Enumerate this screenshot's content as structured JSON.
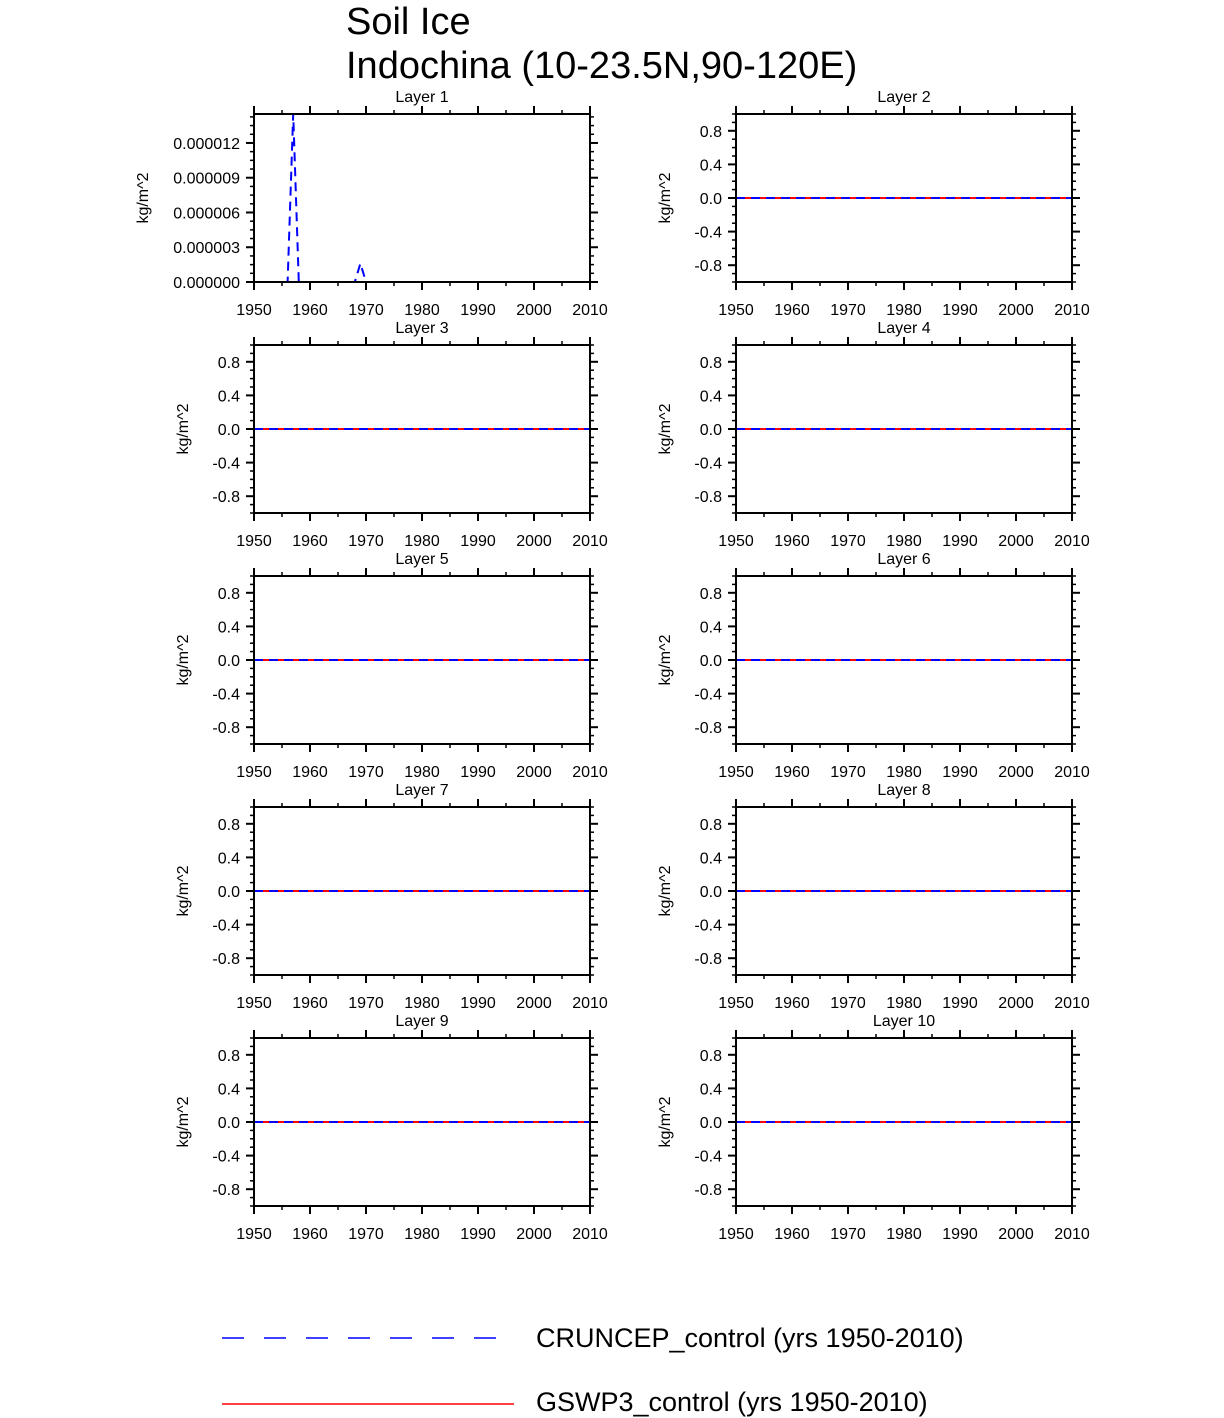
{
  "figure": {
    "title_line1": "Soil Ice",
    "title_line2": "Indochina (10-23.5N,90-120E)"
  },
  "legend": [
    {
      "label": "CRUNCEP_control (yrs 1950-2010)",
      "color": "#0000ff",
      "dash": "dashed"
    },
    {
      "label": "GSWP3_control (yrs 1950-2010)",
      "color": "#ff0000",
      "dash": "solid"
    }
  ],
  "chart_data": [
    {
      "type": "line",
      "title": "Layer 1",
      "ylabel": "kg/m^2",
      "xlim": [
        1950,
        2010
      ],
      "ylim": [
        0,
        1.45e-05
      ],
      "xticks": [
        1950,
        1960,
        1970,
        1980,
        1990,
        2000,
        2010
      ],
      "xticklabels": [
        "1950",
        "1960",
        "1970",
        "1980",
        "1990",
        "2000",
        "2010"
      ],
      "yticks": [
        0,
        3e-06,
        6e-06,
        9e-06,
        1.2e-05
      ],
      "yticklabels": [
        "0.000000",
        "0.000003",
        "0.000006",
        "0.000009",
        "0.000012"
      ],
      "series": [
        {
          "name": "CRUNCEP_control (yrs 1950-2010)",
          "color": "#0000ff",
          "dash": "dashed",
          "x": [
            1950,
            1956,
            1957,
            1958,
            1968,
            1969,
            1970,
            2010
          ],
          "y": [
            0,
            0,
            1.45e-05,
            0,
            0,
            1.6e-06,
            0,
            0
          ]
        },
        {
          "name": "GSWP3_control (yrs 1950-2010)",
          "color": "#ff0000",
          "dash": "solid",
          "x": [
            1950,
            2010
          ],
          "y": [
            0,
            0
          ]
        }
      ]
    },
    {
      "type": "line",
      "title": "Layer 2",
      "ylabel": "kg/m^2",
      "xlim": [
        1950,
        2010
      ],
      "ylim": [
        -1,
        1
      ],
      "xticks": [
        1950,
        1960,
        1970,
        1980,
        1990,
        2000,
        2010
      ],
      "xticklabels": [
        "1950",
        "1960",
        "1970",
        "1980",
        "1990",
        "2000",
        "2010"
      ],
      "yticks": [
        -0.8,
        -0.4,
        0,
        0.4,
        0.8
      ],
      "yticklabels": [
        "-0.8",
        "-0.4",
        "0.0",
        "0.4",
        "0.8"
      ],
      "series": [
        {
          "name": "CRUNCEP_control (yrs 1950-2010)",
          "color": "#0000ff",
          "dash": "dashed",
          "x": [
            1950,
            2010
          ],
          "y": [
            0,
            0
          ]
        },
        {
          "name": "GSWP3_control (yrs 1950-2010)",
          "color": "#ff0000",
          "dash": "solid",
          "x": [
            1950,
            2010
          ],
          "y": [
            0,
            0
          ]
        }
      ]
    },
    {
      "type": "line",
      "title": "Layer 3",
      "ylabel": "kg/m^2",
      "xlim": [
        1950,
        2010
      ],
      "ylim": [
        -1,
        1
      ],
      "xticks": [
        1950,
        1960,
        1970,
        1980,
        1990,
        2000,
        2010
      ],
      "xticklabels": [
        "1950",
        "1960",
        "1970",
        "1980",
        "1990",
        "2000",
        "2010"
      ],
      "yticks": [
        -0.8,
        -0.4,
        0,
        0.4,
        0.8
      ],
      "yticklabels": [
        "-0.8",
        "-0.4",
        "0.0",
        "0.4",
        "0.8"
      ],
      "series": [
        {
          "name": "CRUNCEP_control (yrs 1950-2010)",
          "color": "#0000ff",
          "dash": "dashed",
          "x": [
            1950,
            2010
          ],
          "y": [
            0,
            0
          ]
        },
        {
          "name": "GSWP3_control (yrs 1950-2010)",
          "color": "#ff0000",
          "dash": "solid",
          "x": [
            1950,
            2010
          ],
          "y": [
            0,
            0
          ]
        }
      ]
    },
    {
      "type": "line",
      "title": "Layer 4",
      "ylabel": "kg/m^2",
      "xlim": [
        1950,
        2010
      ],
      "ylim": [
        -1,
        1
      ],
      "xticks": [
        1950,
        1960,
        1970,
        1980,
        1990,
        2000,
        2010
      ],
      "xticklabels": [
        "1950",
        "1960",
        "1970",
        "1980",
        "1990",
        "2000",
        "2010"
      ],
      "yticks": [
        -0.8,
        -0.4,
        0,
        0.4,
        0.8
      ],
      "yticklabels": [
        "-0.8",
        "-0.4",
        "0.0",
        "0.4",
        "0.8"
      ],
      "series": [
        {
          "name": "CRUNCEP_control (yrs 1950-2010)",
          "color": "#0000ff",
          "dash": "dashed",
          "x": [
            1950,
            2010
          ],
          "y": [
            0,
            0
          ]
        },
        {
          "name": "GSWP3_control (yrs 1950-2010)",
          "color": "#ff0000",
          "dash": "solid",
          "x": [
            1950,
            2010
          ],
          "y": [
            0,
            0
          ]
        }
      ]
    },
    {
      "type": "line",
      "title": "Layer 5",
      "ylabel": "kg/m^2",
      "xlim": [
        1950,
        2010
      ],
      "ylim": [
        -1,
        1
      ],
      "xticks": [
        1950,
        1960,
        1970,
        1980,
        1990,
        2000,
        2010
      ],
      "xticklabels": [
        "1950",
        "1960",
        "1970",
        "1980",
        "1990",
        "2000",
        "2010"
      ],
      "yticks": [
        -0.8,
        -0.4,
        0,
        0.4,
        0.8
      ],
      "yticklabels": [
        "-0.8",
        "-0.4",
        "0.0",
        "0.4",
        "0.8"
      ],
      "series": [
        {
          "name": "CRUNCEP_control (yrs 1950-2010)",
          "color": "#0000ff",
          "dash": "dashed",
          "x": [
            1950,
            2010
          ],
          "y": [
            0,
            0
          ]
        },
        {
          "name": "GSWP3_control (yrs 1950-2010)",
          "color": "#ff0000",
          "dash": "solid",
          "x": [
            1950,
            2010
          ],
          "y": [
            0,
            0
          ]
        }
      ]
    },
    {
      "type": "line",
      "title": "Layer 6",
      "ylabel": "kg/m^2",
      "xlim": [
        1950,
        2010
      ],
      "ylim": [
        -1,
        1
      ],
      "xticks": [
        1950,
        1960,
        1970,
        1980,
        1990,
        2000,
        2010
      ],
      "xticklabels": [
        "1950",
        "1960",
        "1970",
        "1980",
        "1990",
        "2000",
        "2010"
      ],
      "yticks": [
        -0.8,
        -0.4,
        0,
        0.4,
        0.8
      ],
      "yticklabels": [
        "-0.8",
        "-0.4",
        "0.0",
        "0.4",
        "0.8"
      ],
      "series": [
        {
          "name": "CRUNCEP_control (yrs 1950-2010)",
          "color": "#0000ff",
          "dash": "dashed",
          "x": [
            1950,
            2010
          ],
          "y": [
            0,
            0
          ]
        },
        {
          "name": "GSWP3_control (yrs 1950-2010)",
          "color": "#ff0000",
          "dash": "solid",
          "x": [
            1950,
            2010
          ],
          "y": [
            0,
            0
          ]
        }
      ]
    },
    {
      "type": "line",
      "title": "Layer 7",
      "ylabel": "kg/m^2",
      "xlim": [
        1950,
        2010
      ],
      "ylim": [
        -1,
        1
      ],
      "xticks": [
        1950,
        1960,
        1970,
        1980,
        1990,
        2000,
        2010
      ],
      "xticklabels": [
        "1950",
        "1960",
        "1970",
        "1980",
        "1990",
        "2000",
        "2010"
      ],
      "yticks": [
        -0.8,
        -0.4,
        0,
        0.4,
        0.8
      ],
      "yticklabels": [
        "-0.8",
        "-0.4",
        "0.0",
        "0.4",
        "0.8"
      ],
      "series": [
        {
          "name": "CRUNCEP_control (yrs 1950-2010)",
          "color": "#0000ff",
          "dash": "dashed",
          "x": [
            1950,
            2010
          ],
          "y": [
            0,
            0
          ]
        },
        {
          "name": "GSWP3_control (yrs 1950-2010)",
          "color": "#ff0000",
          "dash": "solid",
          "x": [
            1950,
            2010
          ],
          "y": [
            0,
            0
          ]
        }
      ]
    },
    {
      "type": "line",
      "title": "Layer 8",
      "ylabel": "kg/m^2",
      "xlim": [
        1950,
        2010
      ],
      "ylim": [
        -1,
        1
      ],
      "xticks": [
        1950,
        1960,
        1970,
        1980,
        1990,
        2000,
        2010
      ],
      "xticklabels": [
        "1950",
        "1960",
        "1970",
        "1980",
        "1990",
        "2000",
        "2010"
      ],
      "yticks": [
        -0.8,
        -0.4,
        0,
        0.4,
        0.8
      ],
      "yticklabels": [
        "-0.8",
        "-0.4",
        "0.0",
        "0.4",
        "0.8"
      ],
      "series": [
        {
          "name": "CRUNCEP_control (yrs 1950-2010)",
          "color": "#0000ff",
          "dash": "dashed",
          "x": [
            1950,
            2010
          ],
          "y": [
            0,
            0
          ]
        },
        {
          "name": "GSWP3_control (yrs 1950-2010)",
          "color": "#ff0000",
          "dash": "solid",
          "x": [
            1950,
            2010
          ],
          "y": [
            0,
            0
          ]
        }
      ]
    },
    {
      "type": "line",
      "title": "Layer 9",
      "ylabel": "kg/m^2",
      "xlim": [
        1950,
        2010
      ],
      "ylim": [
        -1,
        1
      ],
      "xticks": [
        1950,
        1960,
        1970,
        1980,
        1990,
        2000,
        2010
      ],
      "xticklabels": [
        "1950",
        "1960",
        "1970",
        "1980",
        "1990",
        "2000",
        "2010"
      ],
      "yticks": [
        -0.8,
        -0.4,
        0,
        0.4,
        0.8
      ],
      "yticklabels": [
        "-0.8",
        "-0.4",
        "0.0",
        "0.4",
        "0.8"
      ],
      "series": [
        {
          "name": "CRUNCEP_control (yrs 1950-2010)",
          "color": "#0000ff",
          "dash": "dashed",
          "x": [
            1950,
            2010
          ],
          "y": [
            0,
            0
          ]
        },
        {
          "name": "GSWP3_control (yrs 1950-2010)",
          "color": "#ff0000",
          "dash": "solid",
          "x": [
            1950,
            2010
          ],
          "y": [
            0,
            0
          ]
        }
      ]
    },
    {
      "type": "line",
      "title": "Layer 10",
      "ylabel": "kg/m^2",
      "xlim": [
        1950,
        2010
      ],
      "ylim": [
        -1,
        1
      ],
      "xticks": [
        1950,
        1960,
        1970,
        1980,
        1990,
        2000,
        2010
      ],
      "xticklabels": [
        "1950",
        "1960",
        "1970",
        "1980",
        "1990",
        "2000",
        "2010"
      ],
      "yticks": [
        -0.8,
        -0.4,
        0,
        0.4,
        0.8
      ],
      "yticklabels": [
        "-0.8",
        "-0.4",
        "0.0",
        "0.4",
        "0.8"
      ],
      "series": [
        {
          "name": "CRUNCEP_control (yrs 1950-2010)",
          "color": "#0000ff",
          "dash": "dashed",
          "x": [
            1950,
            2010
          ],
          "y": [
            0,
            0
          ]
        },
        {
          "name": "GSWP3_control (yrs 1950-2010)",
          "color": "#ff0000",
          "dash": "solid",
          "x": [
            1950,
            2010
          ],
          "y": [
            0,
            0
          ]
        }
      ]
    }
  ]
}
